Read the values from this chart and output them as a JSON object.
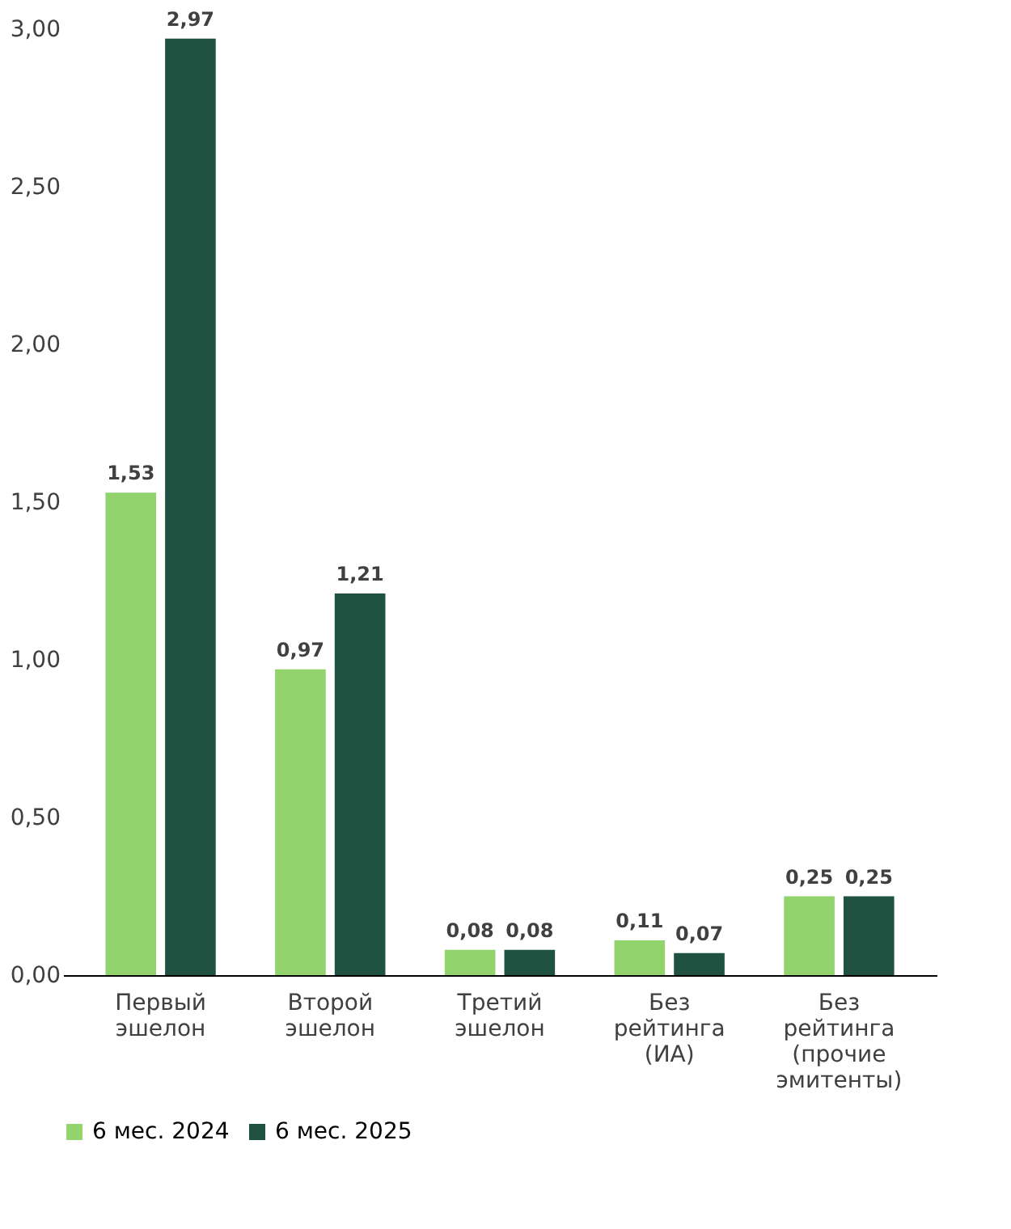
{
  "chart_data": {
    "type": "bar",
    "categories": [
      "Первый эшелон",
      "Второй эшелон",
      "Третий эшелон",
      "Без рейтинга (ИА)",
      "Без рейтинга (прочие эмитенты)"
    ],
    "series": [
      {
        "name": "6 мес. 2024",
        "color": "#92d36e",
        "values": [
          1.53,
          0.97,
          0.08,
          0.11,
          0.25
        ],
        "value_labels": [
          "1,53",
          "0,97",
          "0,08",
          "0,11",
          "0,25"
        ]
      },
      {
        "name": "6 мес. 2025",
        "color": "#1f5240",
        "values": [
          2.97,
          1.21,
          0.08,
          0.07,
          0.25
        ],
        "value_labels": [
          "2,97",
          "1,21",
          "0,08",
          "0,07",
          "0,25"
        ]
      }
    ],
    "ylim": [
      0,
      3
    ],
    "yticks": [
      {
        "value": 0,
        "label": "0,00"
      },
      {
        "value": 0.5,
        "label": "0,50"
      },
      {
        "value": 1,
        "label": "1,00"
      },
      {
        "value": 1.5,
        "label": "1,50"
      },
      {
        "value": 2,
        "label": "2,00"
      },
      {
        "value": 2.5,
        "label": "2,50"
      },
      {
        "value": 3,
        "label": "3,00"
      }
    ],
    "grid": false,
    "legend": "bottom"
  }
}
